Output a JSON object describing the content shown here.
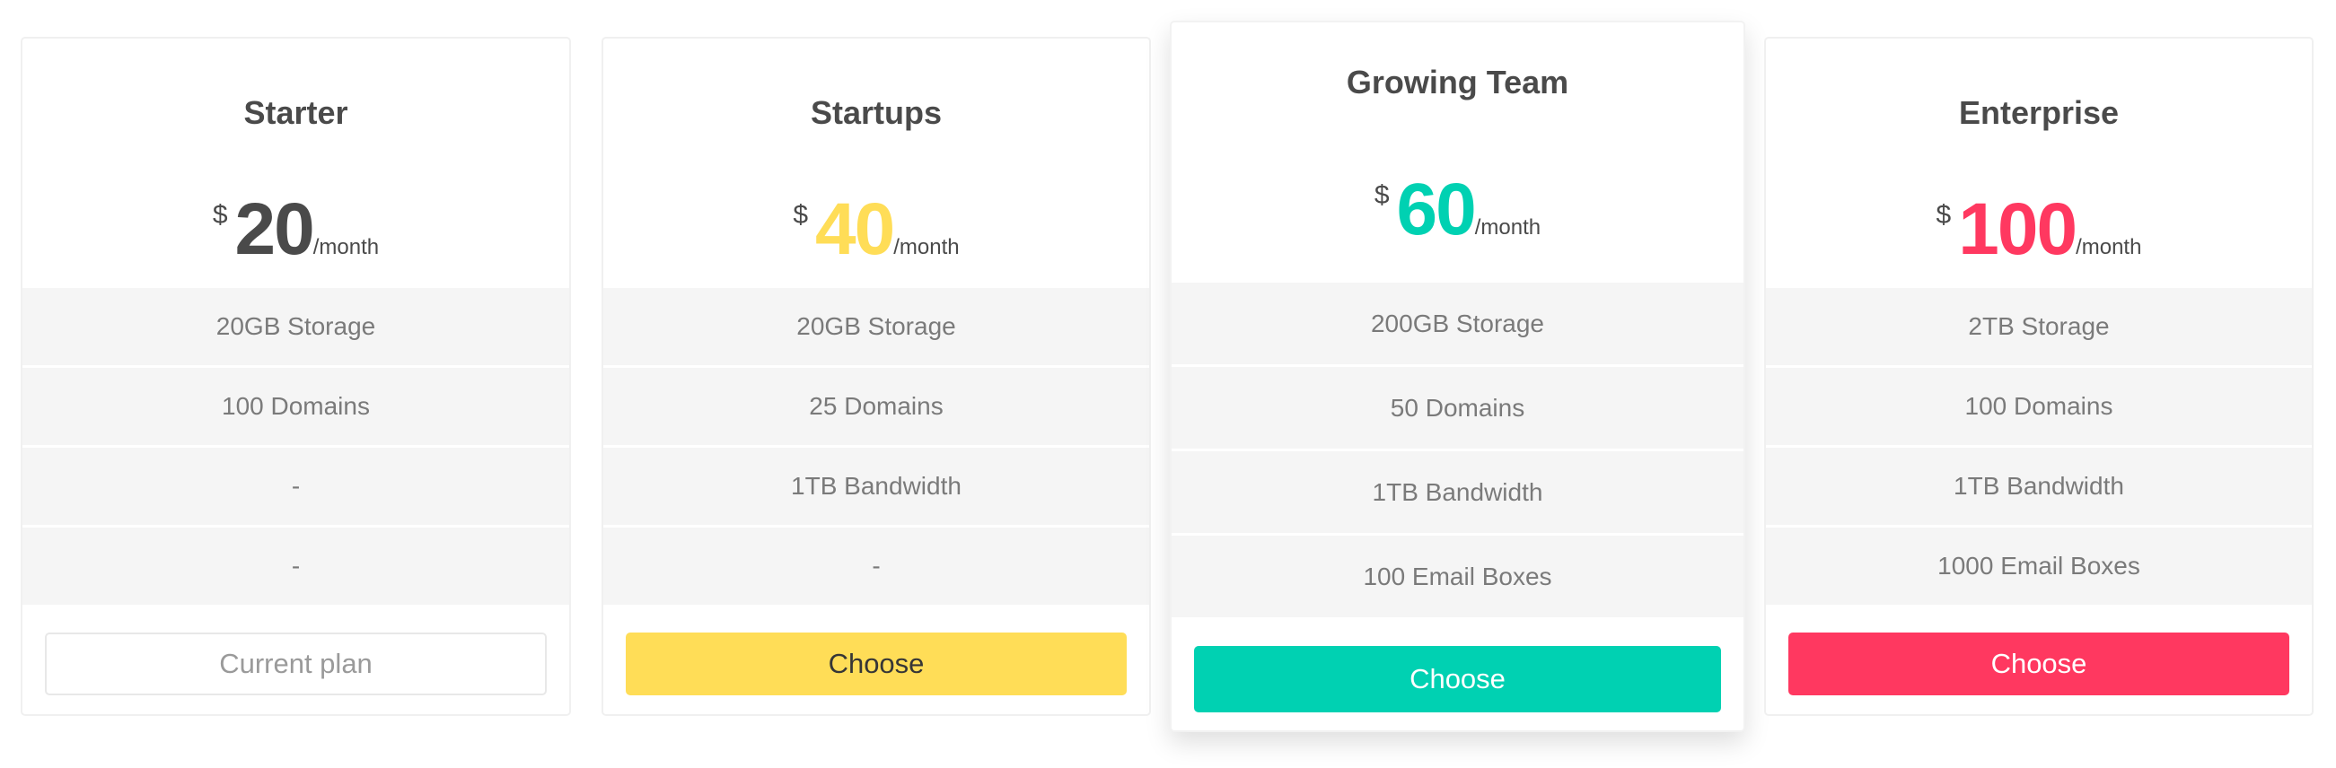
{
  "plans": [
    {
      "name": "Starter",
      "currency": "$",
      "amount": "20",
      "period": "/month",
      "features": [
        "20GB Storage",
        "100 Domains",
        "-",
        "-"
      ],
      "button": "Current plan",
      "accent": "#4a4a4a",
      "button_bg": "#ffffff",
      "button_text": "#9a9a9a",
      "featured": false,
      "current": true
    },
    {
      "name": "Startups",
      "currency": "$",
      "amount": "40",
      "period": "/month",
      "features": [
        "20GB Storage",
        "25 Domains",
        "1TB Bandwidth",
        "-"
      ],
      "button": "Choose",
      "accent": "#ffdd57",
      "button_bg": "#ffdd57",
      "button_text": "#363636",
      "featured": false,
      "current": false
    },
    {
      "name": "Growing Team",
      "currency": "$",
      "amount": "60",
      "period": "/month",
      "features": [
        "200GB Storage",
        "50 Domains",
        "1TB Bandwidth",
        "100 Email Boxes"
      ],
      "button": "Choose",
      "accent": "#00d1b2",
      "button_bg": "#00d1b2",
      "button_text": "#ffffff",
      "featured": true,
      "current": false
    },
    {
      "name": "Enterprise",
      "currency": "$",
      "amount": "100",
      "period": "/month",
      "features": [
        "2TB Storage",
        "100 Domains",
        "1TB Bandwidth",
        "1000 Email Boxes"
      ],
      "button": "Choose",
      "accent": "#ff3860",
      "button_bg": "#ff3860",
      "button_text": "#ffffff",
      "featured": false,
      "current": false
    }
  ]
}
